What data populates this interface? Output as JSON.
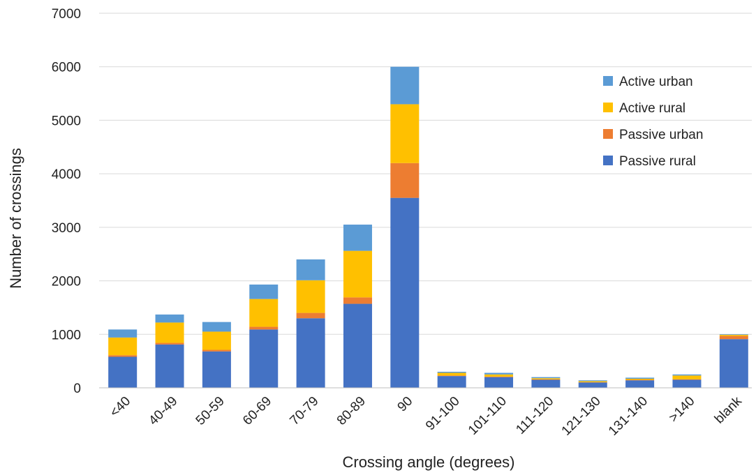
{
  "chart_data": {
    "type": "bar",
    "stacked": true,
    "title": "",
    "xlabel": "Crossing angle (degrees)",
    "ylabel": "Number of crossings",
    "ylim": [
      0,
      7000
    ],
    "yticks": [
      "0",
      "1000",
      "2000",
      "3000",
      "4000",
      "5000",
      "6000",
      "7000"
    ],
    "grid": true,
    "legend_position": "top-right",
    "categories": [
      "<40",
      "40-49",
      "50-59",
      "60-69",
      "70-79",
      "80-89",
      "90",
      "91-100",
      "101-110",
      "111-120",
      "121-130",
      "131-140",
      ">140",
      "blank"
    ],
    "series": [
      {
        "name": "Passive rural",
        "color": "#4472C4",
        "values": [
          580,
          810,
          680,
          1090,
          1300,
          1570,
          3550,
          220,
          200,
          150,
          100,
          140,
          150,
          910
        ]
      },
      {
        "name": "Passive urban",
        "color": "#ED7D31",
        "values": [
          30,
          30,
          30,
          50,
          100,
          120,
          650,
          10,
          10,
          10,
          5,
          10,
          10,
          60
        ]
      },
      {
        "name": "Active rural",
        "color": "#FFC000",
        "values": [
          330,
          380,
          340,
          520,
          610,
          870,
          1100,
          50,
          40,
          20,
          20,
          20,
          70,
          20
        ]
      },
      {
        "name": "Active urban",
        "color": "#5B9BD5",
        "values": [
          150,
          150,
          180,
          270,
          390,
          490,
          700,
          20,
          30,
          20,
          15,
          20,
          20,
          10
        ]
      }
    ]
  }
}
